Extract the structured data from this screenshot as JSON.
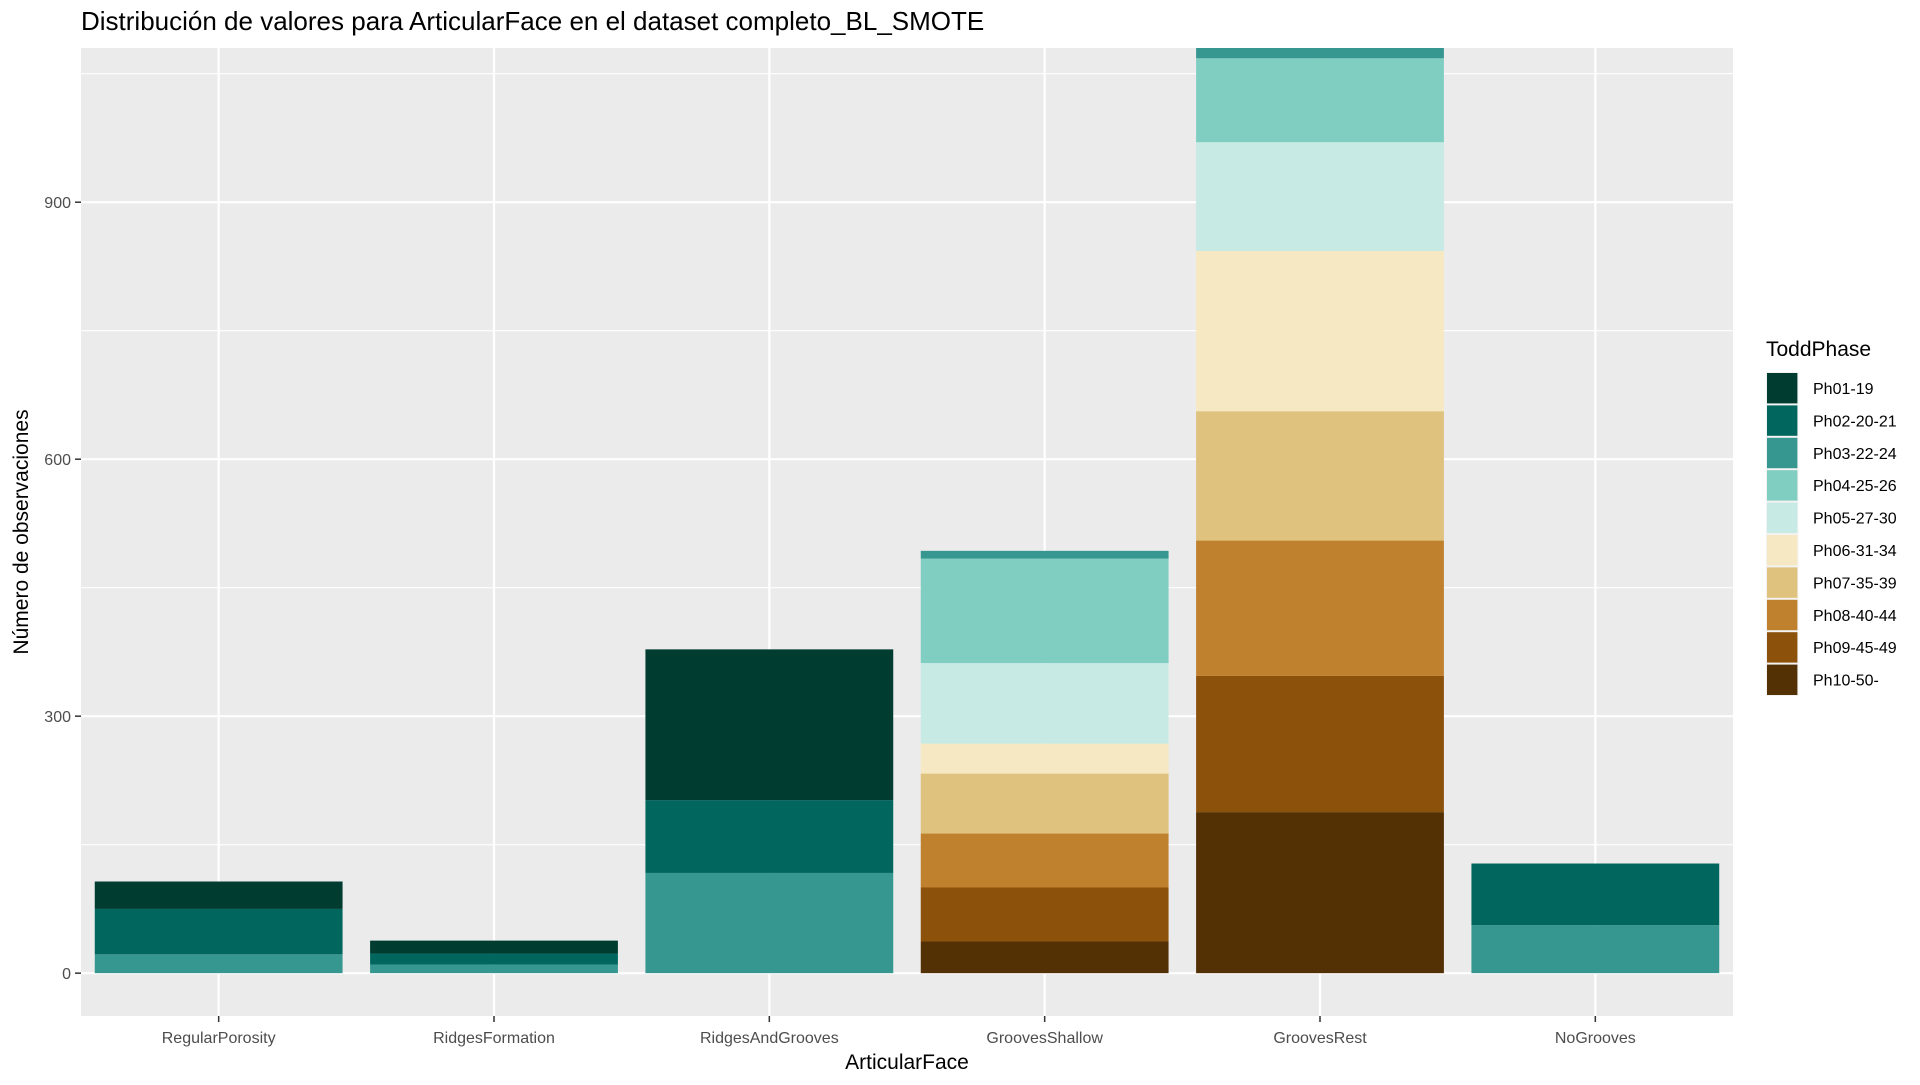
{
  "chart_data": {
    "type": "bar",
    "stacked": true,
    "title": "Distribución de valores para ArticularFace en el dataset completo_BL_SMOTE",
    "xlabel": "ArticularFace",
    "ylabel": "Número de observaciones",
    "ylim": [
      -50,
      1080
    ],
    "yticks": [
      0,
      300,
      600,
      900
    ],
    "grid": true,
    "legend_position": "right",
    "legend_title": "ToddPhase",
    "categories": [
      "RegularPorosity",
      "RidgesFormation",
      "RidgesAndGrooves",
      "GroovesShallow",
      "GroovesRest",
      "NoGrooves"
    ],
    "series": [
      {
        "name": "Ph01-19",
        "color": "#003C30",
        "values": [
          32,
          15,
          176,
          0,
          0,
          0
        ]
      },
      {
        "name": "Ph02-20-21",
        "color": "#01665E",
        "values": [
          53,
          13,
          85,
          0,
          0,
          72
        ]
      },
      {
        "name": "Ph03-22-24",
        "color": "#35978F",
        "values": [
          22,
          10,
          117,
          9,
          12,
          56
        ]
      },
      {
        "name": "Ph04-25-26",
        "color": "#80CDC1",
        "values": [
          0,
          0,
          0,
          122,
          98,
          0
        ]
      },
      {
        "name": "Ph05-27-30",
        "color": "#C7EAE5",
        "values": [
          0,
          0,
          0,
          94,
          127,
          0
        ]
      },
      {
        "name": "Ph06-31-34",
        "color": "#F6E8C3",
        "values": [
          0,
          0,
          0,
          35,
          187,
          0
        ]
      },
      {
        "name": "Ph07-35-39",
        "color": "#DFC27D",
        "values": [
          0,
          0,
          0,
          70,
          151,
          0
        ]
      },
      {
        "name": "Ph08-40-44",
        "color": "#BF812D",
        "values": [
          0,
          0,
          0,
          63,
          158,
          0
        ]
      },
      {
        "name": "Ph09-45-49",
        "color": "#8C510A",
        "values": [
          0,
          0,
          0,
          63,
          159,
          0
        ]
      },
      {
        "name": "Ph10-50-",
        "color": "#543005",
        "values": [
          0,
          0,
          0,
          37,
          188,
          0
        ]
      }
    ]
  }
}
